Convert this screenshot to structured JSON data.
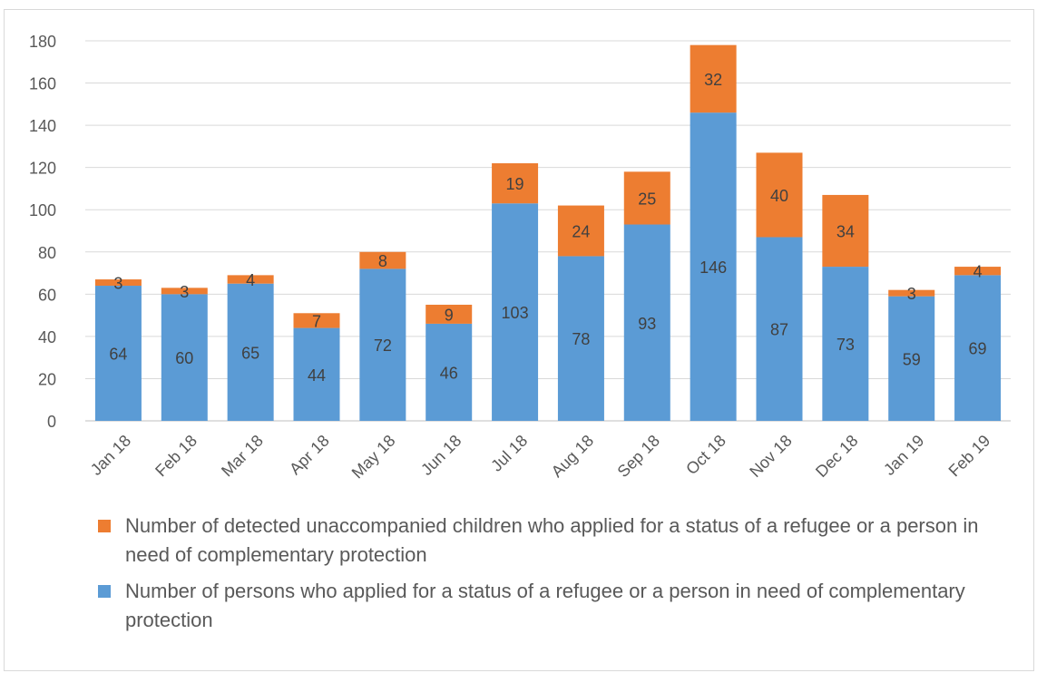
{
  "chart_data": {
    "type": "bar",
    "stacked": true,
    "categories": [
      "Jan 18",
      "Feb 18",
      "Mar 18",
      "Apr 18",
      "May 18",
      "Jun 18",
      "Jul 18",
      "Aug 18",
      "Sep 18",
      "Oct 18",
      "Nov 18",
      "Dec 18",
      "Jan 19",
      "Feb 19"
    ],
    "series": [
      {
        "name": "Number of persons who applied for a status of a refugee or a person in need of complementary protection",
        "color": "#5b9bd5",
        "values": [
          64,
          60,
          65,
          44,
          72,
          46,
          103,
          78,
          93,
          146,
          87,
          73,
          59,
          69
        ]
      },
      {
        "name": "Number of detected unaccompanied children who applied for a status of a refugee or a person in need of complementary protection",
        "color": "#ed7d31",
        "values": [
          3,
          3,
          4,
          7,
          8,
          9,
          19,
          24,
          25,
          32,
          40,
          34,
          3,
          4
        ]
      }
    ],
    "ylim": [
      0,
      180
    ],
    "yticks": [
      0,
      20,
      40,
      60,
      80,
      100,
      120,
      140,
      160,
      180
    ],
    "grid": true,
    "legend_position": "bottom",
    "legend_order": [
      1,
      0
    ],
    "data_labels": true
  }
}
